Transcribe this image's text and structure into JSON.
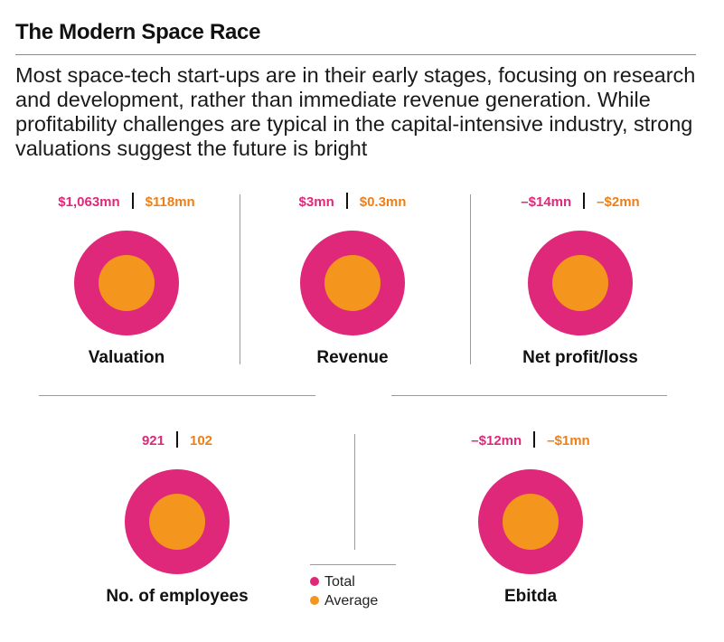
{
  "title": "The Modern Space Race",
  "subtitle": "Most space-tech start-ups are in their early stages, focusing on research and development, rather than immediate revenue generation. While profitability challenges are typical in the capital-intensive industry, strong valuations suggest the future is bright",
  "colors": {
    "total": "#e0287a",
    "average": "#f4951d"
  },
  "chart_data": {
    "type": "nested-circles",
    "series": [
      {
        "name": "Total",
        "color": "#e0287a"
      },
      {
        "name": "Average",
        "color": "#f4951d"
      }
    ],
    "metrics": [
      {
        "label": "Valuation",
        "total": "$1,063mn",
        "average": "$118mn",
        "total_value": 1063,
        "average_value": 118,
        "unit": "$mn"
      },
      {
        "label": "Revenue",
        "total": "$3mn",
        "average": "$0.3mn",
        "total_value": 3,
        "average_value": 0.3,
        "unit": "$mn"
      },
      {
        "label": "Net profit/loss",
        "total": "–$14mn",
        "average": "–$2mn",
        "total_value": -14,
        "average_value": -2,
        "unit": "$mn"
      },
      {
        "label": "No. of employees",
        "total": "921",
        "average": "102",
        "total_value": 921,
        "average_value": 102,
        "unit": ""
      },
      {
        "label": "Ebitda",
        "total": "–$12mn",
        "average": "–$1mn",
        "total_value": -12,
        "average_value": -1,
        "unit": "$mn"
      }
    ]
  },
  "legend": {
    "total_label": "Total",
    "average_label": "Average"
  }
}
